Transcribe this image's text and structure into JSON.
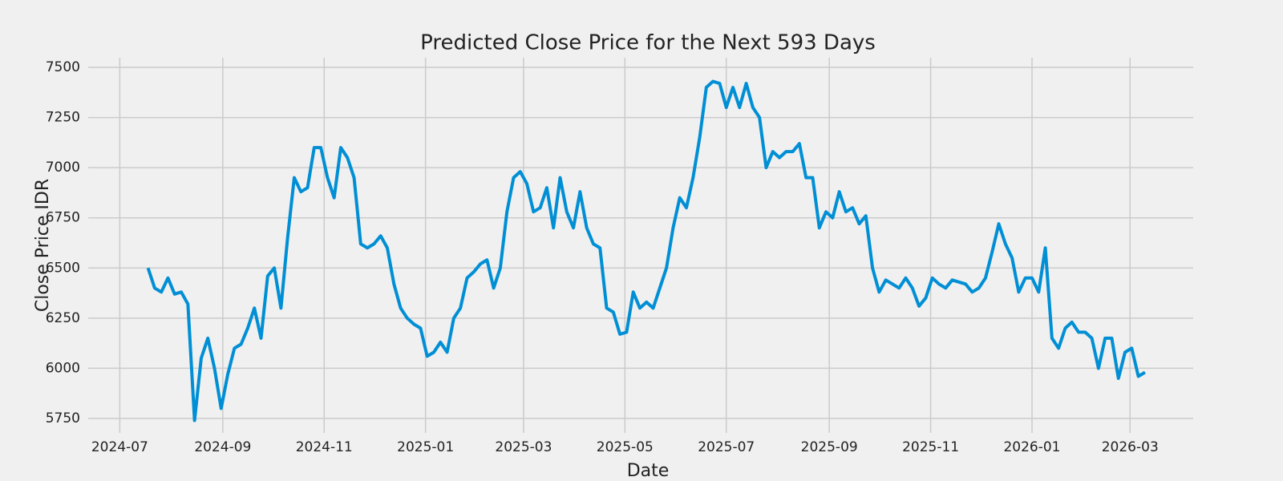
{
  "chart_data": {
    "type": "line",
    "title": "Predicted Close Price for the Next 593 Days",
    "xlabel": "Date",
    "ylabel": "Close Price IDR",
    "color": "#008fd5",
    "grid": true,
    "x": [
      "2024-07-18",
      "2024-07-22",
      "2024-07-26",
      "2024-07-30",
      "2024-08-03",
      "2024-08-07",
      "2024-08-11",
      "2024-08-15",
      "2024-08-19",
      "2024-08-23",
      "2024-08-27",
      "2024-08-31",
      "2024-09-04",
      "2024-09-08",
      "2024-09-12",
      "2024-09-16",
      "2024-09-20",
      "2024-09-24",
      "2024-09-28",
      "2024-10-02",
      "2024-10-06",
      "2024-10-10",
      "2024-10-14",
      "2024-10-18",
      "2024-10-22",
      "2024-10-26",
      "2024-10-30",
      "2024-11-03",
      "2024-11-07",
      "2024-11-11",
      "2024-11-15",
      "2024-11-19",
      "2024-11-23",
      "2024-11-27",
      "2024-12-01",
      "2024-12-05",
      "2024-12-09",
      "2024-12-13",
      "2024-12-17",
      "2024-12-21",
      "2024-12-25",
      "2024-12-29",
      "2025-01-02",
      "2025-01-06",
      "2025-01-10",
      "2025-01-14",
      "2025-01-18",
      "2025-01-22",
      "2025-01-26",
      "2025-01-30",
      "2025-02-03",
      "2025-02-07",
      "2025-02-11",
      "2025-02-15",
      "2025-02-19",
      "2025-02-23",
      "2025-02-27",
      "2025-03-03",
      "2025-03-07",
      "2025-03-11",
      "2025-03-15",
      "2025-03-19",
      "2025-03-23",
      "2025-03-27",
      "2025-03-31",
      "2025-04-04",
      "2025-04-08",
      "2025-04-12",
      "2025-04-16",
      "2025-04-20",
      "2025-04-24",
      "2025-04-28",
      "2025-05-02",
      "2025-05-06",
      "2025-05-10",
      "2025-05-14",
      "2025-05-18",
      "2025-05-22",
      "2025-05-26",
      "2025-05-30",
      "2025-06-03",
      "2025-06-07",
      "2025-06-11",
      "2025-06-15",
      "2025-06-19",
      "2025-06-23",
      "2025-06-27",
      "2025-07-01",
      "2025-07-05",
      "2025-07-09",
      "2025-07-13",
      "2025-07-17",
      "2025-07-21",
      "2025-07-25",
      "2025-07-29",
      "2025-08-02",
      "2025-08-06",
      "2025-08-10",
      "2025-08-14",
      "2025-08-18",
      "2025-08-22",
      "2025-08-26",
      "2025-08-30",
      "2025-09-03",
      "2025-09-07",
      "2025-09-11",
      "2025-09-15",
      "2025-09-19",
      "2025-09-23",
      "2025-09-27",
      "2025-10-01",
      "2025-10-05",
      "2025-10-09",
      "2025-10-13",
      "2025-10-17",
      "2025-10-21",
      "2025-10-25",
      "2025-10-29",
      "2025-11-02",
      "2025-11-06",
      "2025-11-10",
      "2025-11-14",
      "2025-11-18",
      "2025-11-22",
      "2025-11-26",
      "2025-11-30",
      "2025-12-04",
      "2025-12-08",
      "2025-12-12",
      "2025-12-16",
      "2025-12-20",
      "2025-12-24",
      "2025-12-28",
      "2026-01-01",
      "2026-01-05",
      "2026-01-09",
      "2026-01-13",
      "2026-01-17",
      "2026-01-21",
      "2026-01-25",
      "2026-01-29",
      "2026-02-02",
      "2026-02-06",
      "2026-02-10",
      "2026-02-14",
      "2026-02-18",
      "2026-02-22",
      "2026-02-26",
      "2026-03-02",
      "2026-03-06",
      "2026-03-10"
    ],
    "values": [
      6500,
      6400,
      6380,
      6450,
      6370,
      6380,
      6320,
      5740,
      6050,
      6150,
      6000,
      5800,
      5970,
      6100,
      6120,
      6200,
      6300,
      6150,
      6460,
      6500,
      6300,
      6650,
      6950,
      6880,
      6900,
      7100,
      7100,
      6950,
      6850,
      7100,
      7050,
      6950,
      6620,
      6600,
      6620,
      6660,
      6600,
      6420,
      6300,
      6250,
      6220,
      6200,
      6060,
      6080,
      6130,
      6080,
      6250,
      6300,
      6450,
      6480,
      6520,
      6540,
      6400,
      6500,
      6780,
      6950,
      6980,
      6920,
      6780,
      6800,
      6900,
      6700,
      6950,
      6780,
      6700,
      6880,
      6700,
      6620,
      6600,
      6300,
      6280,
      6170,
      6180,
      6380,
      6300,
      6330,
      6300,
      6400,
      6500,
      6700,
      6850,
      6800,
      6950,
      7150,
      7400,
      7430,
      7420,
      7300,
      7400,
      7300,
      7420,
      7300,
      7250,
      7000,
      7080,
      7050,
      7080,
      7080,
      7120,
      6950,
      6950,
      6700,
      6780,
      6750,
      6880,
      6780,
      6800,
      6720,
      6760,
      6500,
      6380,
      6440,
      6420,
      6400,
      6450,
      6400,
      6310,
      6350,
      6450,
      6420,
      6400,
      6440,
      6430,
      6420,
      6380,
      6400,
      6450,
      6580,
      6720,
      6620,
      6550,
      6380,
      6450,
      6450,
      6380,
      6600,
      6150,
      6100,
      6200,
      6230,
      6180,
      6180,
      6150,
      6000,
      6150,
      6150,
      5950,
      6080,
      6100,
      5960,
      5980
    ],
    "xlim": [
      "2024-06-12",
      "2026-04-08"
    ],
    "xticks": [
      {
        "value": "2024-07-01",
        "label": "2024-07"
      },
      {
        "value": "2024-09-01",
        "label": "2024-09"
      },
      {
        "value": "2024-11-01",
        "label": "2024-11"
      },
      {
        "value": "2025-01-01",
        "label": "2025-01"
      },
      {
        "value": "2025-03-01",
        "label": "2025-03"
      },
      {
        "value": "2025-05-01",
        "label": "2025-05"
      },
      {
        "value": "2025-07-01",
        "label": "2025-07"
      },
      {
        "value": "2025-09-01",
        "label": "2025-09"
      },
      {
        "value": "2025-11-01",
        "label": "2025-11"
      },
      {
        "value": "2026-01-01",
        "label": "2026-01"
      },
      {
        "value": "2026-03-01",
        "label": "2026-03"
      }
    ],
    "ylim": [
      5678,
      7548
    ],
    "yticks": [
      5750,
      6000,
      6250,
      6500,
      6750,
      7000,
      7250,
      7500
    ]
  }
}
